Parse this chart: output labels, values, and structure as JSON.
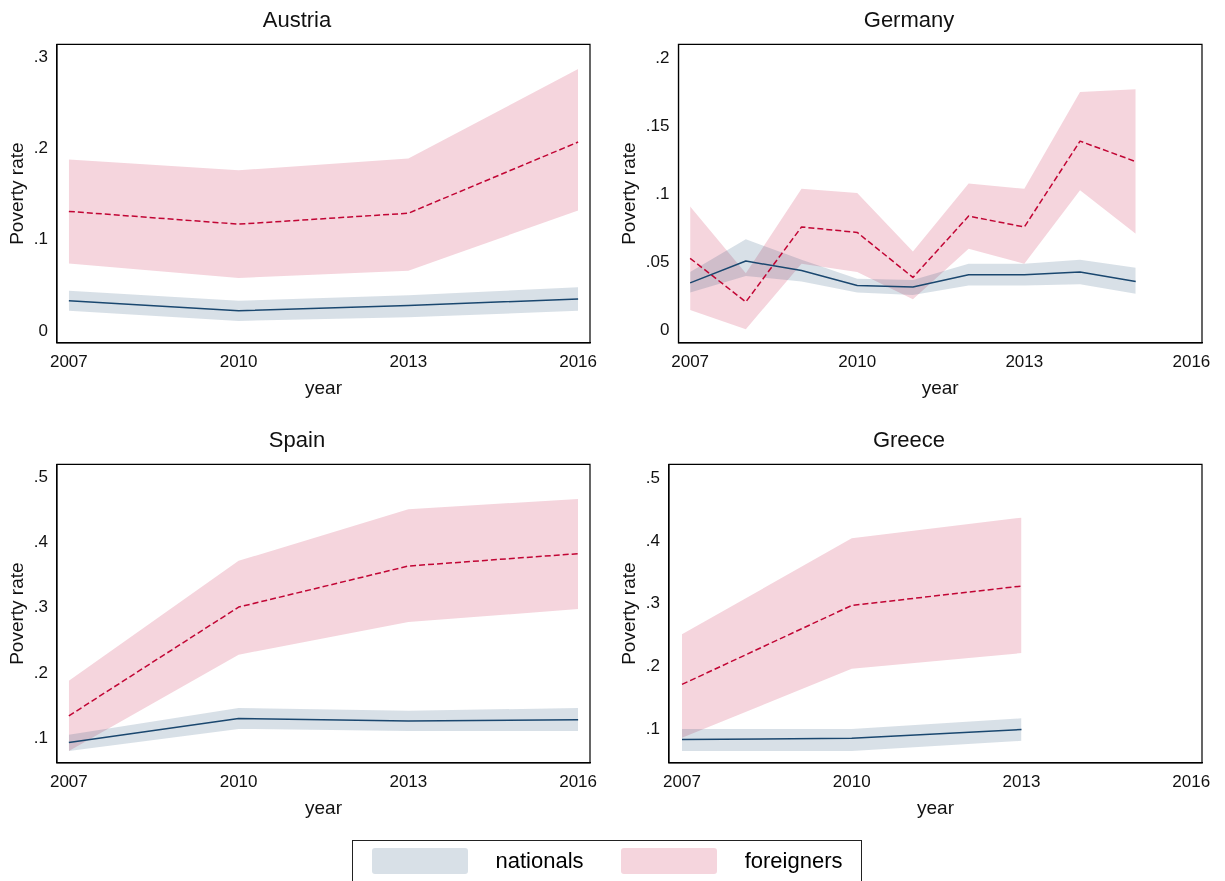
{
  "chart_data": [
    {
      "type": "line",
      "title": "Austria",
      "xlabel": "year",
      "ylabel": "Poverty rate",
      "x": [
        2007,
        2010,
        2013,
        2016
      ],
      "xlim": [
        2006.79,
        2016.21
      ],
      "xticks": [
        2007,
        2010,
        2013,
        2016
      ],
      "ylim": [
        -0.013,
        0.314
      ],
      "yticks": [
        {
          "value": 0,
          "label": "0"
        },
        {
          "value": 0.1,
          "label": ".1"
        },
        {
          "value": 0.2,
          "label": ".2"
        },
        {
          "value": 0.3,
          "label": ".3"
        }
      ],
      "grid": false,
      "legend": "bottom",
      "marker": "none",
      "series": [
        {
          "name": "nationals",
          "color": "#1a476f",
          "line_style": "solid",
          "values": [
            0.033,
            0.022,
            0.028,
            0.035
          ],
          "lower": [
            0.022,
            0.011,
            0.015,
            0.022
          ],
          "upper": [
            0.044,
            0.033,
            0.039,
            0.048
          ]
        },
        {
          "name": "foreigners",
          "color": "#c10534",
          "line_style": "dashed",
          "values": [
            0.131,
            0.117,
            0.129,
            0.207
          ],
          "lower": [
            0.074,
            0.058,
            0.066,
            0.132
          ],
          "upper": [
            0.188,
            0.176,
            0.189,
            0.287
          ]
        }
      ]
    },
    {
      "type": "line",
      "title": "Germany",
      "xlabel": "year",
      "ylabel": "Poverty rate",
      "x": [
        2007,
        2008,
        2009,
        2010,
        2011,
        2012,
        2013,
        2014,
        2015
      ],
      "xlim": [
        2006.79,
        2016.19
      ],
      "xticks": [
        2007,
        2010,
        2013,
        2016
      ],
      "ylim": [
        -0.009,
        0.21
      ],
      "yticks": [
        {
          "value": 0,
          "label": "0"
        },
        {
          "value": 0.05,
          "label": ".05"
        },
        {
          "value": 0.1,
          "label": ".1"
        },
        {
          "value": 0.15,
          "label": ".15"
        },
        {
          "value": 0.2,
          "label": ".2"
        }
      ],
      "grid": false,
      "marker": "none",
      "series": [
        {
          "color": "#1a476f",
          "line_style": "solid",
          "values": [
            0.035,
            0.051,
            0.044,
            0.033,
            0.032,
            0.041,
            0.041,
            0.043,
            0.036
          ],
          "lower": [
            0.028,
            0.04,
            0.036,
            0.028,
            0.026,
            0.033,
            0.033,
            0.034,
            0.027
          ],
          "upper": [
            0.043,
            0.067,
            0.052,
            0.038,
            0.037,
            0.049,
            0.049,
            0.052,
            0.046
          ]
        },
        {
          "color": "#c10534",
          "line_style": "dashed",
          "values": [
            0.053,
            0.021,
            0.076,
            0.072,
            0.039,
            0.084,
            0.076,
            0.139,
            0.124
          ],
          "lower": [
            0.015,
            0.001,
            0.049,
            0.043,
            0.023,
            0.06,
            0.049,
            0.103,
            0.071
          ],
          "upper": [
            0.091,
            0.042,
            0.104,
            0.101,
            0.058,
            0.108,
            0.104,
            0.175,
            0.177
          ]
        }
      ]
    },
    {
      "type": "line",
      "title": "Spain",
      "xlabel": "year",
      "ylabel": "Poverty rate",
      "x": [
        2007,
        2010,
        2013,
        2016
      ],
      "xlim": [
        2006.79,
        2016.21
      ],
      "xticks": [
        2007,
        2010,
        2013,
        2016
      ],
      "ylim": [
        0.062,
        0.52
      ],
      "yticks": [
        {
          "value": 0.1,
          "label": ".1"
        },
        {
          "value": 0.2,
          "label": ".2"
        },
        {
          "value": 0.3,
          "label": ".3"
        },
        {
          "value": 0.4,
          "label": ".4"
        },
        {
          "value": 0.5,
          "label": ".5"
        }
      ],
      "grid": false,
      "marker": "none",
      "series": [
        {
          "color": "#1a476f",
          "line_style": "solid",
          "values": [
            0.093,
            0.13,
            0.126,
            0.128
          ],
          "lower": [
            0.08,
            0.114,
            0.111,
            0.111
          ],
          "upper": [
            0.105,
            0.146,
            0.142,
            0.146
          ]
        },
        {
          "color": "#c10534",
          "line_style": "dashed",
          "values": [
            0.134,
            0.301,
            0.364,
            0.383
          ],
          "lower": [
            0.08,
            0.228,
            0.278,
            0.298
          ],
          "upper": [
            0.188,
            0.372,
            0.451,
            0.467
          ]
        }
      ]
    },
    {
      "type": "line",
      "title": "Greece",
      "xlabel": "year",
      "ylabel": "Poverty rate",
      "x": [
        2007,
        2010,
        2013
      ],
      "xlim": [
        2006.77,
        2016.19
      ],
      "xticks": [
        2007,
        2010,
        2013,
        2016
      ],
      "ylim": [
        0.046,
        0.522
      ],
      "yticks": [
        {
          "value": 0.1,
          "label": ".1"
        },
        {
          "value": 0.2,
          "label": ".2"
        },
        {
          "value": 0.3,
          "label": ".3"
        },
        {
          "value": 0.4,
          "label": ".4"
        },
        {
          "value": 0.5,
          "label": ".5"
        }
      ],
      "grid": false,
      "marker": "none",
      "series": [
        {
          "color": "#1a476f",
          "line_style": "solid",
          "values": [
            0.083,
            0.085,
            0.099
          ],
          "lower": [
            0.065,
            0.065,
            0.081
          ],
          "upper": [
            0.1,
            0.1,
            0.117
          ]
        },
        {
          "color": "#c10534",
          "line_style": "dashed",
          "values": [
            0.171,
            0.297,
            0.328
          ],
          "lower": [
            0.086,
            0.196,
            0.221
          ],
          "upper": [
            0.251,
            0.404,
            0.437
          ]
        }
      ]
    }
  ]
}
